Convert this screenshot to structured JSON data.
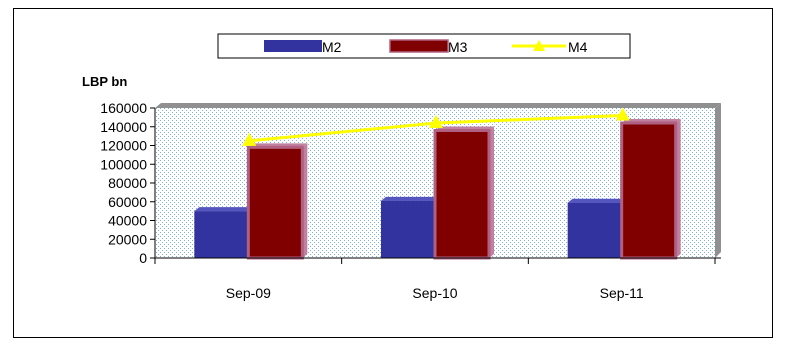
{
  "chart_data": {
    "type": "bar",
    "categories": [
      "Sep-09",
      "Sep-10",
      "Sep-11"
    ],
    "series": [
      {
        "name": "M2",
        "kind": "bar",
        "color": "#3333A0",
        "values": [
          50000,
          61000,
          59000
        ]
      },
      {
        "name": "M3",
        "kind": "bar",
        "color": "#800000",
        "values": [
          118000,
          136000,
          144000
        ]
      },
      {
        "name": "M4",
        "kind": "line",
        "color": "#FFFF00",
        "values": [
          125000,
          144000,
          152000
        ]
      }
    ],
    "ylabel": "LBP bn",
    "ylim": [
      0,
      160000
    ],
    "yticks": [
      0,
      20000,
      40000,
      60000,
      80000,
      100000,
      120000,
      140000,
      160000
    ],
    "legend_position": "top-center",
    "grid": false,
    "plot_background": "dotted light blue"
  }
}
